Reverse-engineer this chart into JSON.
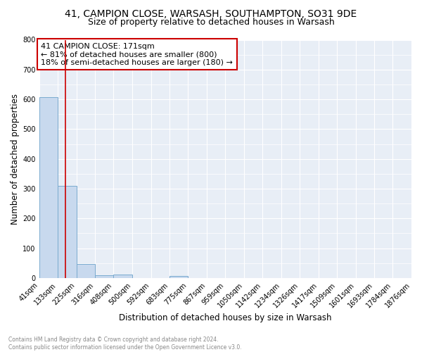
{
  "title1": "41, CAMPION CLOSE, WARSASH, SOUTHAMPTON, SO31 9DE",
  "title2": "Size of property relative to detached houses in Warsash",
  "xlabel": "Distribution of detached houses by size in Warsash",
  "ylabel": "Number of detached properties",
  "bin_edges": [
    41,
    133,
    225,
    316,
    408,
    500,
    592,
    683,
    775,
    867,
    959,
    1050,
    1142,
    1234,
    1326,
    1417,
    1509,
    1601,
    1693,
    1784,
    1876
  ],
  "bin_heights": [
    608,
    310,
    48,
    10,
    12,
    0,
    0,
    8,
    0,
    0,
    0,
    0,
    0,
    0,
    0,
    0,
    0,
    0,
    0,
    0
  ],
  "bar_color": "#c8d9ee",
  "bar_edge_color": "#7aabcf",
  "background_color": "#ffffff",
  "plot_bg_color": "#e8eef6",
  "grid_color": "#ffffff",
  "property_line_x": 171,
  "property_line_color": "#cc0000",
  "annotation_text": "41 CAMPION CLOSE: 171sqm\n← 81% of detached houses are smaller (800)\n18% of semi-detached houses are larger (180) →",
  "annotation_box_color": "#ffffff",
  "annotation_box_edge": "#cc0000",
  "ylim": [
    0,
    800
  ],
  "yticks": [
    0,
    100,
    200,
    300,
    400,
    500,
    600,
    700,
    800
  ],
  "footnote": "Contains HM Land Registry data © Crown copyright and database right 2024.\nContains public sector information licensed under the Open Government Licence v3.0.",
  "title_fontsize": 10,
  "subtitle_fontsize": 9,
  "tick_label_fontsize": 7,
  "ylabel_fontsize": 8.5,
  "xlabel_fontsize": 8.5,
  "annot_fontsize": 8,
  "footnote_fontsize": 5.5
}
